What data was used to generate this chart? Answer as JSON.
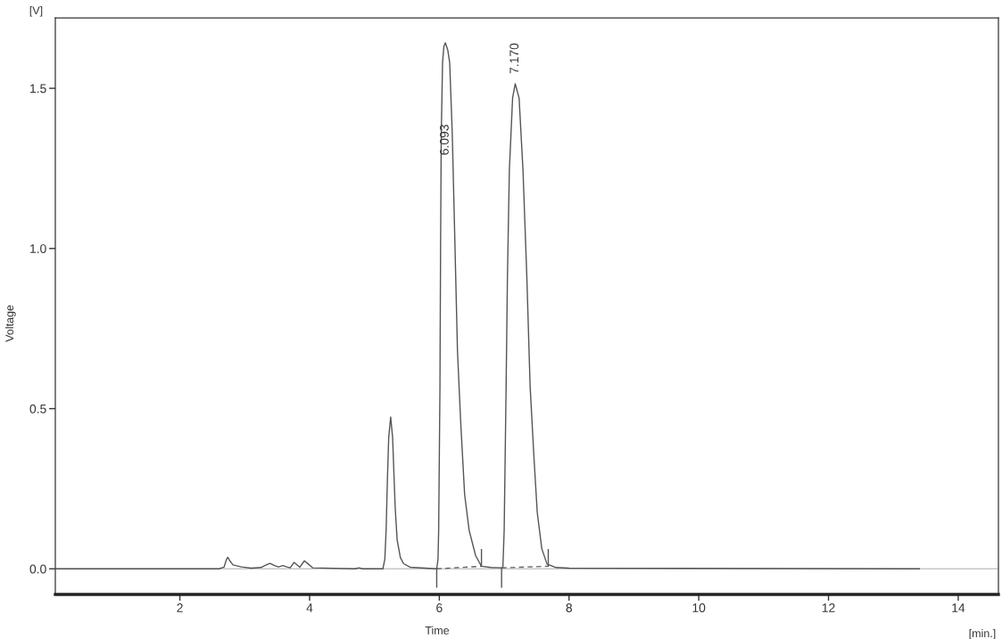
{
  "chart_data": {
    "type": "line",
    "xlabel": "Time",
    "ylabel": "Voltage",
    "xlim": [
      0.08,
      14.62
    ],
    "ylim": [
      -0.08,
      1.72
    ],
    "xticks": [
      2,
      4,
      6,
      8,
      10,
      12,
      14
    ],
    "yticks": [
      {
        "value": 0,
        "label": "0.0"
      },
      0.5,
      {
        "value": 1,
        "label": "1.0"
      },
      1.5
    ],
    "series": [
      {
        "color": "#555555",
        "x": [
          0.08,
          2.6,
          2.68,
          2.72,
          2.74,
          2.77,
          2.82,
          2.95,
          3.1,
          3.25,
          3.33,
          3.39,
          3.46,
          3.52,
          3.59,
          3.65,
          3.7,
          3.76,
          3.81,
          3.85,
          3.92,
          3.98,
          4.05,
          4.7,
          4.76,
          4.82,
          5.13,
          5.16,
          5.18,
          5.2,
          5.22,
          5.25,
          5.28,
          5.3,
          5.32,
          5.35,
          5.4,
          5.45,
          5.55,
          5.96,
          5.98,
          5.99,
          6.01,
          6.02,
          6.03,
          6.05,
          6.07,
          6.093,
          6.13,
          6.16,
          6.2,
          6.24,
          6.28,
          6.33,
          6.39,
          6.46,
          6.56,
          6.65,
          6.8,
          6.96,
          6.98,
          7.0,
          7.03,
          7.05,
          7.08,
          7.13,
          7.17,
          7.23,
          7.29,
          7.35,
          7.4,
          7.46,
          7.51,
          7.58,
          7.66,
          7.8,
          8.0,
          13.4
        ],
        "values": [
          0,
          0,
          0.005,
          0.03,
          0.036,
          0.025,
          0.012,
          0.006,
          0.002,
          0.004,
          0.012,
          0.017,
          0.01,
          0.006,
          0.01,
          0.006,
          0.003,
          0.02,
          0.012,
          0.005,
          0.025,
          0.015,
          0.003,
          0,
          0.003,
          0,
          0,
          0.03,
          0.12,
          0.28,
          0.41,
          0.474,
          0.41,
          0.3,
          0.19,
          0.09,
          0.035,
          0.016,
          0.005,
          0,
          0.03,
          0.12,
          0.57,
          1.02,
          1.356,
          1.58,
          1.63,
          1.642,
          1.62,
          1.58,
          1.356,
          1.02,
          0.68,
          0.457,
          0.233,
          0.12,
          0.041,
          0.008,
          0.004,
          0.003,
          0.004,
          0.12,
          0.57,
          0.908,
          1.245,
          1.47,
          1.514,
          1.47,
          1.245,
          0.908,
          0.57,
          0.345,
          0.176,
          0.063,
          0.015,
          0.004,
          0.002,
          0
        ]
      },
      {
        "color": "#666666",
        "line_style": "dashed",
        "x": [
          5.96,
          6.65
        ],
        "values": [
          0,
          0.008
        ]
      },
      {
        "color": "#666666",
        "line_style": "dashed",
        "x": [
          6.96,
          7.68
        ],
        "values": [
          0.003,
          0.008
        ]
      },
      {
        "color": "#555555",
        "x": [
          5.96,
          5.96
        ],
        "values": [
          0,
          -0.057
        ]
      },
      {
        "color": "#555555",
        "x": [
          6.65,
          6.65
        ],
        "values": [
          0.008,
          0.06
        ]
      },
      {
        "color": "#555555",
        "x": [
          6.96,
          6.96
        ],
        "values": [
          0.003,
          -0.057
        ]
      },
      {
        "color": "#555555",
        "x": [
          7.68,
          7.68
        ],
        "values": [
          0.008,
          0.06
        ]
      }
    ],
    "ref_lines": [
      {
        "axis": "y",
        "value": 0,
        "color": "#c8c8c8"
      }
    ],
    "annotations": [
      {
        "text": "6.093",
        "x": 6.093,
        "y": 1.26
      },
      {
        "text": "7.170",
        "x": 7.17,
        "y": 1.514
      },
      "[V]",
      "[min.]"
    ]
  }
}
